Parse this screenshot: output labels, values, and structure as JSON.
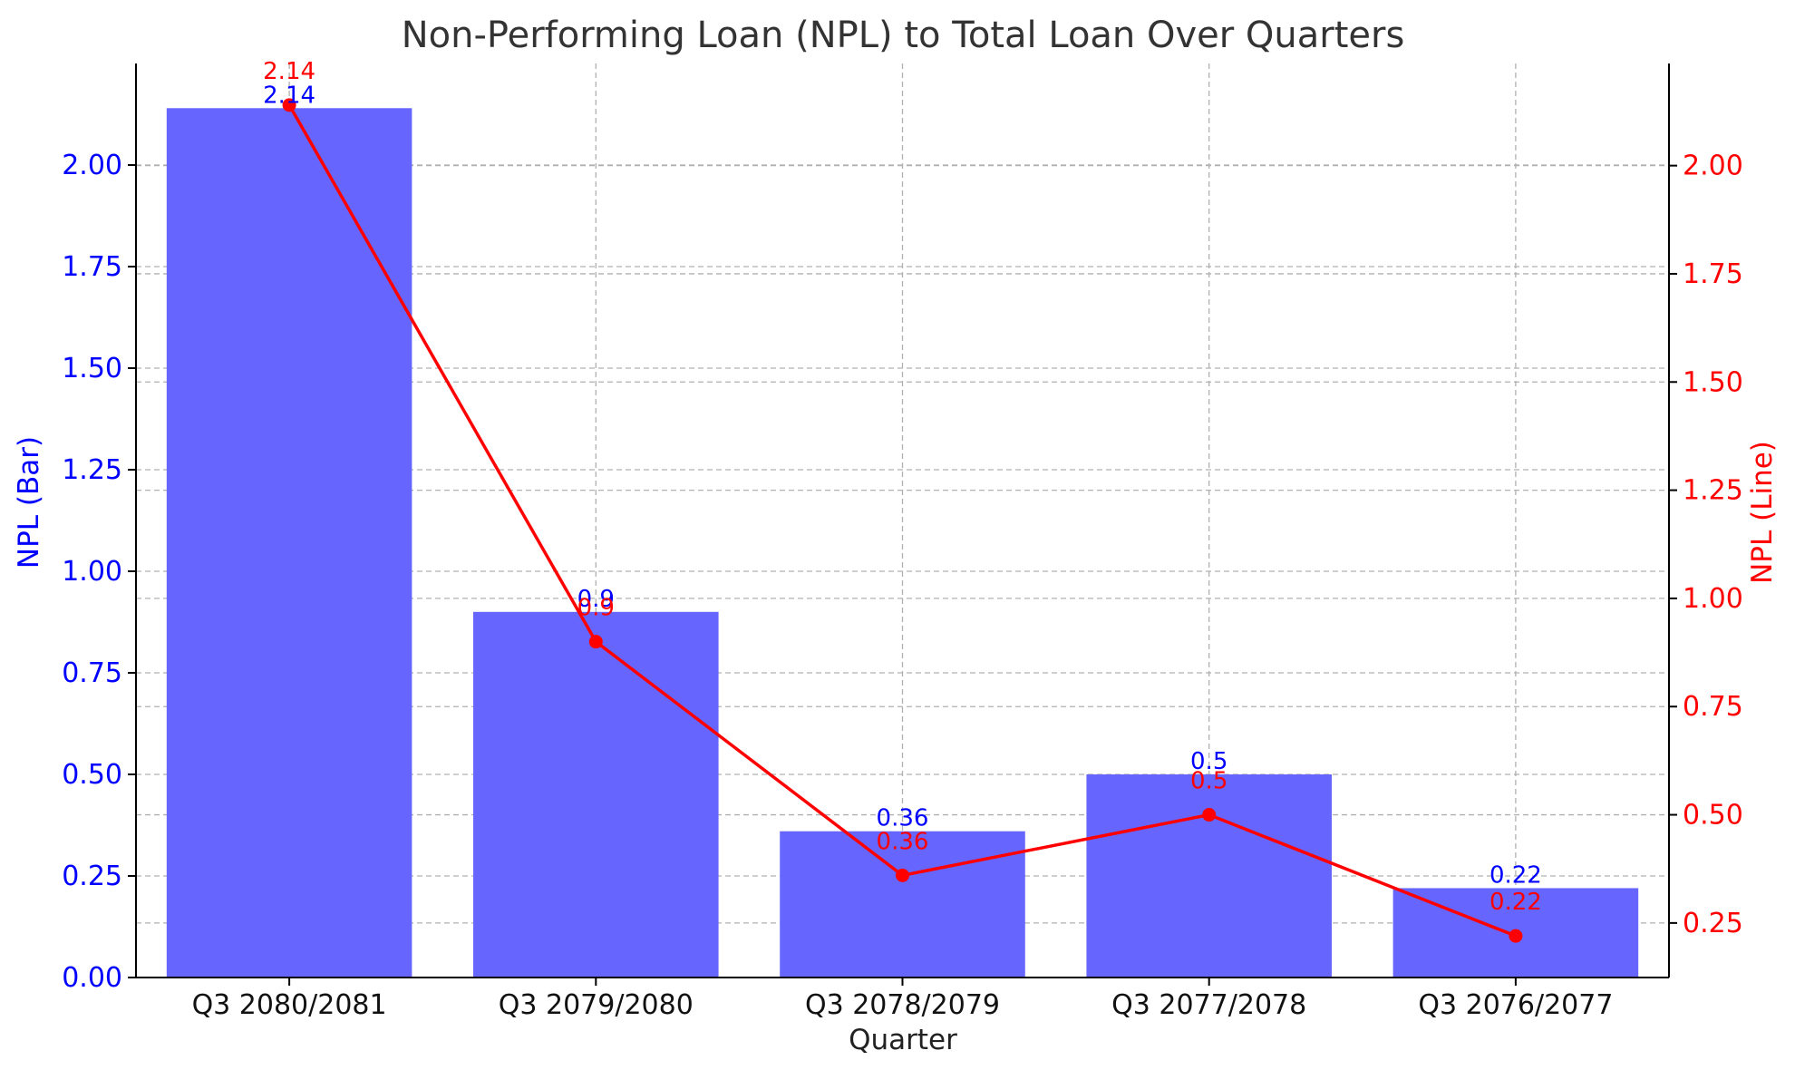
{
  "chart_data": {
    "type": "bar",
    "title": "Non-Performing Loan (NPL) to Total Loan Over Quarters",
    "xlabel": "Quarter",
    "categories": [
      "Q3 2080/2081",
      "Q3 2079/2080",
      "Q3 2078/2079",
      "Q3 2077/2078",
      "Q3 2076/2077"
    ],
    "grid": true,
    "bar_series": {
      "values": [
        2.14,
        0.9,
        0.36,
        0.5,
        0.22
      ],
      "color": "#6666ff",
      "label_color": "#0000ff",
      "axis": "left"
    },
    "line_series": {
      "values": [
        2.14,
        0.9,
        0.36,
        0.5,
        0.22
      ],
      "color": "#ff0000",
      "axis": "right"
    },
    "left_axis": {
      "label": "NPL (Bar)",
      "color": "#0000ff",
      "ylim": [
        0,
        2.25
      ],
      "ticks": [
        "0.00",
        "0.25",
        "0.50",
        "0.75",
        "1.00",
        "1.25",
        "1.50",
        "1.75",
        "2.00"
      ]
    },
    "right_axis": {
      "label": "NPL (Line)",
      "color": "#ff0000",
      "ylim": [
        0.124,
        2.236
      ],
      "ticks": [
        "0.25",
        "0.50",
        "0.75",
        "1.00",
        "1.25",
        "1.50",
        "1.75",
        "2.00"
      ]
    },
    "bar_labels": [
      "2.14",
      "0.9",
      "0.36",
      "0.5",
      "0.22"
    ],
    "line_labels": [
      "2.14",
      "0.9",
      "0.36",
      "0.5",
      "0.22"
    ]
  }
}
